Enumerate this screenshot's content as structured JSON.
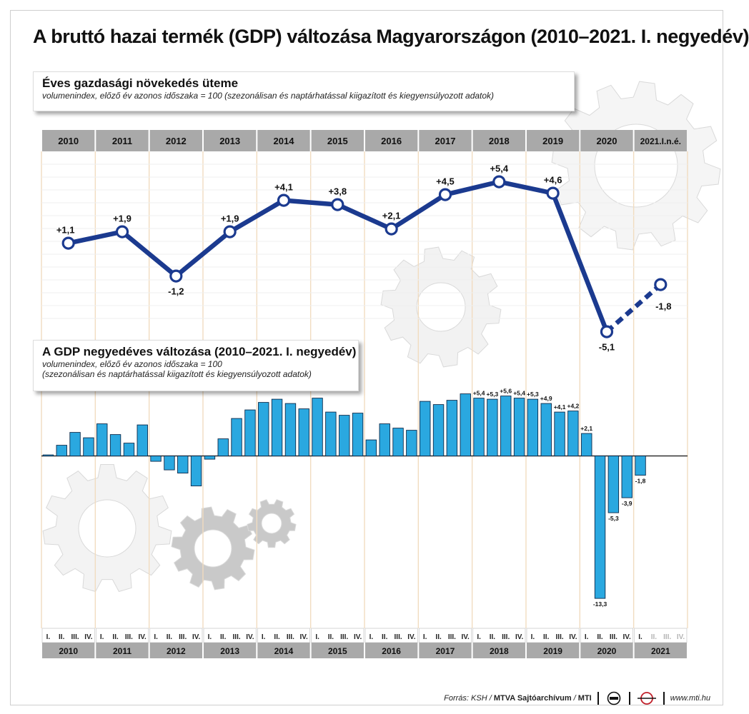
{
  "title": "A bruttó hazai termék (GDP) változása Magyarországon (2010–2021. I. negyedév)",
  "chart_data": [
    {
      "type": "line",
      "title": "Éves gazdasági növekedés üteme",
      "subtitle": "volumenindex, előző év azonos időszaka = 100 (szezonálisan és naptárhatással kiigazított és kiegyensúlyozott adatok)",
      "categories": [
        "2010",
        "2011",
        "2012",
        "2013",
        "2014",
        "2015",
        "2016",
        "2017",
        "2018",
        "2019",
        "2020",
        "2021.I.n.é."
      ],
      "values": [
        1.1,
        1.9,
        -1.2,
        1.9,
        4.1,
        3.8,
        2.1,
        4.5,
        5.4,
        4.6,
        -5.1,
        -1.8
      ],
      "labels": [
        "+1,1",
        "+1,9",
        "-1,2",
        "+1,9",
        "+4,1",
        "+3,8",
        "+2,1",
        "+4,5",
        "+5,4",
        "+4,6",
        "-5,1",
        "-1,8"
      ],
      "dashed_last_segment": true,
      "color": "#1b3a8f"
    },
    {
      "type": "bar",
      "title": "A GDP negyedéves változása (2010–2021. I. negyedév)",
      "subtitle1": "volumenindex, előző év azonos időszaka = 100",
      "subtitle2": "(szezonálisan és naptárhatással kiigazított és kiegyensúlyozott adatok)",
      "years": [
        "2010",
        "2011",
        "2012",
        "2013",
        "2014",
        "2015",
        "2016",
        "2017",
        "2018",
        "2019",
        "2020",
        "2021"
      ],
      "quarter_labels": [
        "I.",
        "II.",
        "III.",
        "IV."
      ],
      "values": [
        0.1,
        1.0,
        2.2,
        1.7,
        3.0,
        2.0,
        1.2,
        2.9,
        -0.5,
        -1.3,
        -1.6,
        -2.8,
        -0.3,
        1.6,
        3.5,
        4.3,
        5.0,
        5.3,
        4.9,
        4.4,
        5.4,
        4.1,
        3.8,
        4.0,
        1.5,
        3.0,
        2.6,
        2.4,
        5.1,
        4.8,
        5.2,
        5.8,
        5.4,
        5.3,
        5.6,
        5.4,
        5.3,
        4.9,
        4.1,
        4.2,
        2.1,
        -13.3,
        -5.3,
        -3.9,
        -1.8
      ],
      "value_labels": {
        "32": "+5,4",
        "33": "+5,3",
        "34": "+5,6",
        "35": "+5,4",
        "36": "+5,3",
        "37": "+4,9",
        "38": "+4,1",
        "39": "+4,2",
        "40": "+2,1",
        "41": "-13,3",
        "42": "-5,3",
        "43": "-3,9",
        "44": "-1,8"
      },
      "color": "#2aa8e0"
    }
  ],
  "footer": {
    "source": "Forrás: KSH / ",
    "archive": "MTVA Sajtóarchívum",
    "slash": " / ",
    "mti": "MTI",
    "website": "www.mti.hu"
  }
}
